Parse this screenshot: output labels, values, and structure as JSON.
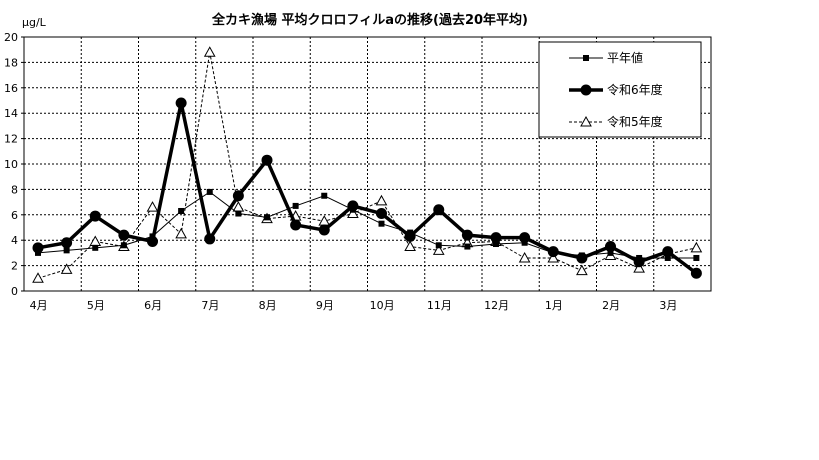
{
  "chart_data": {
    "type": "line",
    "title": "全カキ漁場 平均クロロフィルaの推移(過去20年平均)",
    "ylabel": "μg/L",
    "xlabel": "",
    "ylim": [
      0,
      20
    ],
    "yticks": [
      0,
      2,
      4,
      6,
      8,
      10,
      12,
      14,
      16,
      18,
      20
    ],
    "month_labels": [
      "4月",
      "5月",
      "6月",
      "7月",
      "8月",
      "9月",
      "10月",
      "11月",
      "12月",
      "1月",
      "2月",
      "3月"
    ],
    "grid": true,
    "legend_position": "top-right",
    "series": [
      {
        "name": "平年値",
        "style": "thin-solid-square",
        "color": "#000000",
        "values": [
          3.0,
          3.2,
          3.4,
          3.6,
          4.3,
          6.3,
          7.8,
          6.1,
          5.8,
          6.7,
          7.5,
          6.4,
          5.3,
          4.6,
          3.6,
          3.5,
          3.7,
          3.8,
          3.0,
          2.8,
          3.0,
          2.6,
          2.6,
          2.6
        ]
      },
      {
        "name": "令和6年度",
        "style": "thick-solid-circle",
        "color": "#000000",
        "values": [
          3.4,
          3.8,
          5.9,
          4.4,
          3.9,
          14.8,
          4.1,
          7.5,
          10.3,
          5.2,
          4.8,
          6.7,
          6.1,
          4.3,
          6.4,
          4.4,
          4.2,
          4.2,
          3.1,
          2.6,
          3.5,
          2.3,
          3.1,
          1.4
        ]
      },
      {
        "name": "令和5年度",
        "style": "thin-dashed-triangle",
        "color": "#000000",
        "values": [
          1.0,
          1.7,
          3.9,
          3.5,
          6.6,
          4.5,
          18.8,
          6.6,
          5.7,
          5.9,
          5.5,
          6.1,
          7.1,
          3.5,
          3.2,
          3.8,
          3.9,
          2.6,
          2.6,
          1.6,
          2.8,
          1.8,
          2.9,
          3.4
        ]
      }
    ]
  }
}
